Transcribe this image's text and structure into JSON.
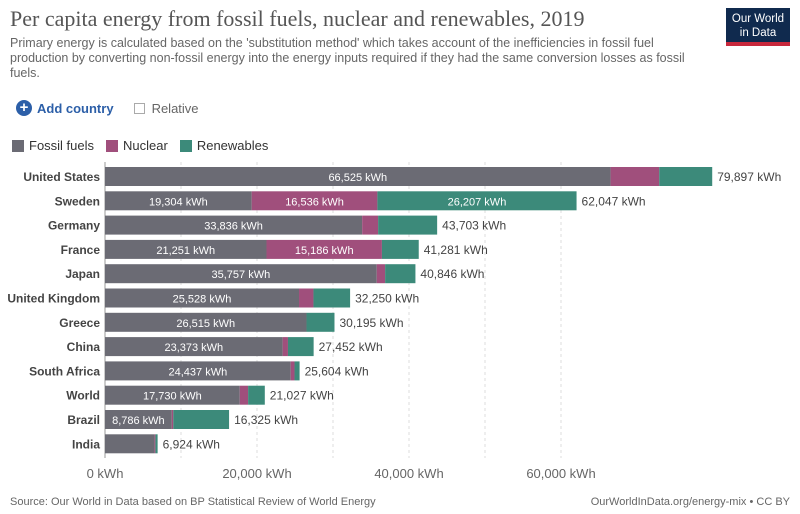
{
  "header": {
    "title": "Per capita energy from fossil fuels, nuclear and renewables, 2019",
    "subtitle": "Primary energy is calculated based on the 'substitution method' which takes account of the inefficiencies in fossil fuel production by converting non-fossil energy into the energy inputs required if they had the same conversion losses as fossil fuels.",
    "logo_line1": "Our World",
    "logo_line2": "in Data"
  },
  "controls": {
    "add_country_label": "Add country",
    "relative_label": "Relative"
  },
  "colors": {
    "fossil": "#6b6b74",
    "nuclear": "#a04f7c",
    "renewables": "#3c8a7a"
  },
  "chart_data": {
    "type": "bar",
    "orientation": "horizontal",
    "stacked": true,
    "title": "Per capita energy from fossil fuels, nuclear and renewables, 2019",
    "xlim": [
      0,
      80000
    ],
    "x_ticks": [
      0,
      20000,
      40000,
      60000
    ],
    "x_tick_labels": [
      "0 kWh",
      "20,000 kWh",
      "40,000 kWh",
      "60,000 kWh"
    ],
    "legend": [
      "Fossil fuels",
      "Nuclear",
      "Renewables"
    ],
    "categories": [
      "United States",
      "Sweden",
      "Germany",
      "France",
      "Japan",
      "United Kingdom",
      "Greece",
      "China",
      "South Africa",
      "World",
      "Brazil",
      "India"
    ],
    "series": [
      {
        "name": "Fossil fuels",
        "values": [
          66525,
          19304,
          33836,
          21251,
          35757,
          25528,
          26515,
          23373,
          24437,
          17730,
          8786,
          6500
        ]
      },
      {
        "name": "Nuclear",
        "values": [
          6400,
          16536,
          2100,
          15186,
          1100,
          1900,
          0,
          700,
          500,
          1100,
          200,
          130
        ]
      },
      {
        "name": "Renewables",
        "values": [
          6972,
          26207,
          7767,
          4844,
          3989,
          4822,
          3680,
          3379,
          667,
          2197,
          7339,
          294
        ]
      }
    ],
    "segment_labels": [
      [
        "66,525 kWh",
        "",
        ""
      ],
      [
        "19,304 kWh",
        "16,536 kWh",
        "26,207 kWh"
      ],
      [
        "33,836 kWh",
        "",
        ""
      ],
      [
        "21,251 kWh",
        "15,186 kWh",
        ""
      ],
      [
        "35,757 kWh",
        "",
        ""
      ],
      [
        "25,528 kWh",
        "",
        ""
      ],
      [
        "26,515 kWh",
        "",
        ""
      ],
      [
        "23,373 kWh",
        "",
        ""
      ],
      [
        "24,437 kWh",
        "",
        ""
      ],
      [
        "17,730 kWh",
        "",
        ""
      ],
      [
        "8,786 kWh",
        "",
        ""
      ],
      [
        "",
        "",
        ""
      ]
    ],
    "totals": [
      "79,897 kWh",
      "62,047 kWh",
      "43,703 kWh",
      "41,281 kWh",
      "40,846 kWh",
      "32,250 kWh",
      "30,195 kWh",
      "27,452 kWh",
      "25,604 kWh",
      "21,027 kWh",
      "16,325 kWh",
      "6,924 kWh"
    ]
  },
  "footer": {
    "source": "Source: Our World in Data based on BP Statistical Review of World Energy",
    "license": "OurWorldInData.org/energy-mix • CC BY"
  }
}
